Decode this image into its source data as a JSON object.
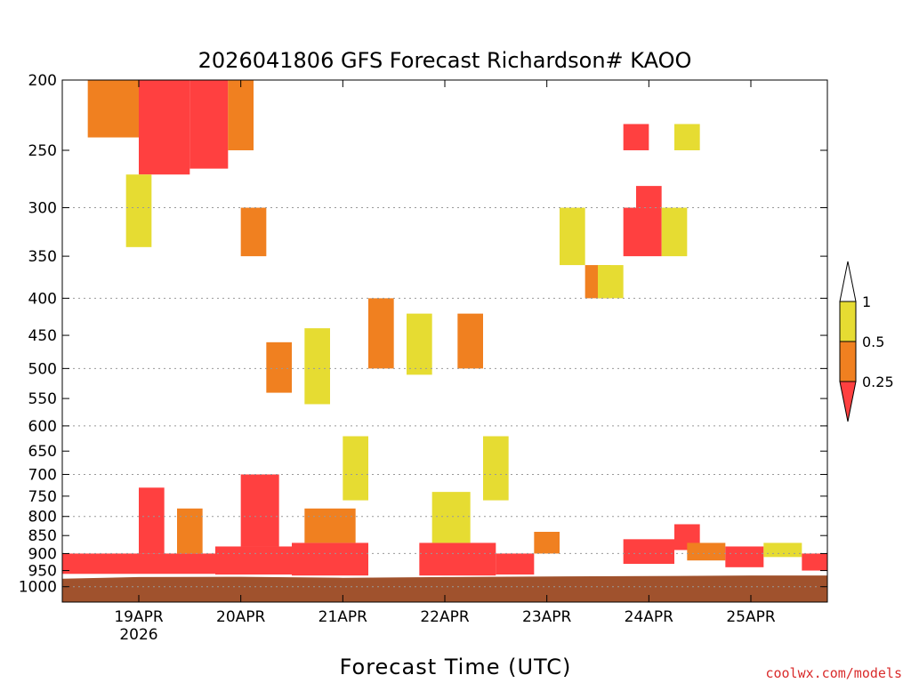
{
  "colors": {
    "ri_lt_025": "#ff4040",
    "ri_025_05": "#f08020",
    "ri_05_1": "#e6dc32",
    "terrain": "#a0522d",
    "grid": "#999999"
  },
  "credit": "coolwx.com/models",
  "chart_data": {
    "type": "heatmap",
    "title": "2026041806 GFS Forecast Richardson# KAOO",
    "xlabel": "Forecast Time (UTC)",
    "ylabel": "",
    "x_ticks": [
      "19APR",
      "20APR",
      "21APR",
      "22APR",
      "23APR",
      "24APR",
      "25APR"
    ],
    "x_tick_sublabel": "2026",
    "x_range": [
      "2026-04-18T06:00Z",
      "2026-04-25T18:00Z"
    ],
    "x_tick_dates": [
      "2026-04-19",
      "2026-04-20",
      "2026-04-21",
      "2026-04-22",
      "2026-04-23",
      "2026-04-24",
      "2026-04-25"
    ],
    "y_ticks": [
      200,
      250,
      300,
      350,
      400,
      450,
      500,
      550,
      600,
      650,
      700,
      750,
      800,
      850,
      900,
      950,
      1000
    ],
    "y_range": [
      200,
      1050
    ],
    "y_scale": "log-pressure",
    "y_inverted": true,
    "grid_levels": [
      300,
      400,
      500,
      600,
      700,
      800,
      900,
      1000
    ],
    "legend": {
      "labels": [
        "1",
        "0.5",
        "0.25"
      ],
      "bins": [
        {
          "range": [
            0.5,
            1
          ],
          "color": "#e6dc32"
        },
        {
          "range": [
            0.25,
            0.5
          ],
          "color": "#f08020"
        },
        {
          "range": [
            0,
            0.25
          ],
          "color": "#ff4040"
        }
      ],
      "placement": "right"
    },
    "surface": [
      {
        "date": "2026-04-18T06:00Z",
        "pressure": 975
      },
      {
        "date": "2026-04-19T00:00Z",
        "pressure": 970
      },
      {
        "date": "2026-04-20T00:00Z",
        "pressure": 969
      },
      {
        "date": "2026-04-21T00:00Z",
        "pressure": 972
      },
      {
        "date": "2026-04-22T00:00Z",
        "pressure": 970
      },
      {
        "date": "2026-04-23T00:00Z",
        "pressure": 968
      },
      {
        "date": "2026-04-24T00:00Z",
        "pressure": 967
      },
      {
        "date": "2026-04-25T00:00Z",
        "pressure": 965
      },
      {
        "date": "2026-04-25T18:00Z",
        "pressure": 965
      }
    ],
    "regions": [
      {
        "start": "2026-04-18T06:00Z",
        "end": "2026-04-19T18:00Z",
        "p_top": 900,
        "p_bottom": 960,
        "value": 0.15
      },
      {
        "start": "2026-04-19T18:00Z",
        "end": "2026-04-20T12:00Z",
        "p_top": 880,
        "p_bottom": 962,
        "value": 0.15
      },
      {
        "start": "2026-04-20T12:00Z",
        "end": "2026-04-21T06:00Z",
        "p_top": 870,
        "p_bottom": 965,
        "value": 0.15
      },
      {
        "start": "2026-04-21T18:00Z",
        "end": "2026-04-22T12:00Z",
        "p_top": 870,
        "p_bottom": 965,
        "value": 0.15
      },
      {
        "start": "2026-04-22T12:00Z",
        "end": "2026-04-22T21:00Z",
        "p_top": 900,
        "p_bottom": 962,
        "value": 0.15
      },
      {
        "start": "2026-04-19T00:00Z",
        "end": "2026-04-19T06:00Z",
        "p_top": 730,
        "p_bottom": 900,
        "value": 0.15
      },
      {
        "start": "2026-04-20T00:00Z",
        "end": "2026-04-20T09:00Z",
        "p_top": 700,
        "p_bottom": 880,
        "value": 0.15
      },
      {
        "start": "2026-04-19T09:00Z",
        "end": "2026-04-19T15:00Z",
        "p_top": 780,
        "p_bottom": 900,
        "value": 0.35
      },
      {
        "start": "2026-04-20T15:00Z",
        "end": "2026-04-21T03:00Z",
        "p_top": 780,
        "p_bottom": 870,
        "value": 0.35
      },
      {
        "start": "2026-04-21T21:00Z",
        "end": "2026-04-22T06:00Z",
        "p_top": 740,
        "p_bottom": 870,
        "value": 0.7
      },
      {
        "start": "2026-04-19T00:00Z",
        "end": "2026-04-19T12:00Z",
        "p_top": 200,
        "p_bottom": 270,
        "value": 0.15
      },
      {
        "start": "2026-04-19T12:00Z",
        "end": "2026-04-19T21:00Z",
        "p_top": 200,
        "p_bottom": 265,
        "value": 0.15
      },
      {
        "start": "2026-04-18T12:00Z",
        "end": "2026-04-19T00:00Z",
        "p_top": 200,
        "p_bottom": 240,
        "value": 0.35
      },
      {
        "start": "2026-04-19T21:00Z",
        "end": "2026-04-20T03:00Z",
        "p_top": 200,
        "p_bottom": 250,
        "value": 0.35
      },
      {
        "start": "2026-04-18T21:00Z",
        "end": "2026-04-19T03:00Z",
        "p_top": 270,
        "p_bottom": 340,
        "value": 0.7
      },
      {
        "start": "2026-04-20T00:00Z",
        "end": "2026-04-20T06:00Z",
        "p_top": 300,
        "p_bottom": 350,
        "value": 0.35
      },
      {
        "start": "2026-04-20T06:00Z",
        "end": "2026-04-20T12:00Z",
        "p_top": 460,
        "p_bottom": 540,
        "value": 0.35
      },
      {
        "start": "2026-04-20T15:00Z",
        "end": "2026-04-20T21:00Z",
        "p_top": 440,
        "p_bottom": 560,
        "value": 0.7
      },
      {
        "start": "2026-04-21T00:00Z",
        "end": "2026-04-21T06:00Z",
        "p_top": 620,
        "p_bottom": 760,
        "value": 0.7
      },
      {
        "start": "2026-04-21T06:00Z",
        "end": "2026-04-21T12:00Z",
        "p_top": 400,
        "p_bottom": 500,
        "value": 0.35
      },
      {
        "start": "2026-04-21T15:00Z",
        "end": "2026-04-21T21:00Z",
        "p_top": 420,
        "p_bottom": 510,
        "value": 0.7
      },
      {
        "start": "2026-04-22T03:00Z",
        "end": "2026-04-22T09:00Z",
        "p_top": 420,
        "p_bottom": 500,
        "value": 0.35
      },
      {
        "start": "2026-04-22T09:00Z",
        "end": "2026-04-22T15:00Z",
        "p_top": 620,
        "p_bottom": 760,
        "value": 0.7
      },
      {
        "start": "2026-04-22T21:00Z",
        "end": "2026-04-23T03:00Z",
        "p_top": 840,
        "p_bottom": 900,
        "value": 0.35
      },
      {
        "start": "2026-04-23T03:00Z",
        "end": "2026-04-23T09:00Z",
        "p_top": 300,
        "p_bottom": 360,
        "value": 0.7
      },
      {
        "start": "2026-04-23T09:00Z",
        "end": "2026-04-23T15:00Z",
        "p_top": 360,
        "p_bottom": 400,
        "value": 0.35
      },
      {
        "start": "2026-04-23T12:00Z",
        "end": "2026-04-23T18:00Z",
        "p_top": 360,
        "p_bottom": 400,
        "value": 0.7
      },
      {
        "start": "2026-04-23T18:00Z",
        "end": "2026-04-24T03:00Z",
        "p_top": 300,
        "p_bottom": 350,
        "value": 0.15
      },
      {
        "start": "2026-04-23T18:00Z",
        "end": "2026-04-24T00:00Z",
        "p_top": 230,
        "p_bottom": 250,
        "value": 0.15
      },
      {
        "start": "2026-04-24T03:00Z",
        "end": "2026-04-24T09:00Z",
        "p_top": 300,
        "p_bottom": 350,
        "value": 0.7
      },
      {
        "start": "2026-04-23T21:00Z",
        "end": "2026-04-24T03:00Z",
        "p_top": 280,
        "p_bottom": 300,
        "value": 0.15
      },
      {
        "start": "2026-04-24T06:00Z",
        "end": "2026-04-24T12:00Z",
        "p_top": 230,
        "p_bottom": 250,
        "value": 0.7
      },
      {
        "start": "2026-04-23T18:00Z",
        "end": "2026-04-24T06:00Z",
        "p_top": 860,
        "p_bottom": 930,
        "value": 0.15
      },
      {
        "start": "2026-04-24T06:00Z",
        "end": "2026-04-24T12:00Z",
        "p_top": 820,
        "p_bottom": 890,
        "value": 0.15
      },
      {
        "start": "2026-04-24T09:00Z",
        "end": "2026-04-24T18:00Z",
        "p_top": 870,
        "p_bottom": 920,
        "value": 0.35
      },
      {
        "start": "2026-04-24T18:00Z",
        "end": "2026-04-25T03:00Z",
        "p_top": 880,
        "p_bottom": 940,
        "value": 0.15
      },
      {
        "start": "2026-04-25T03:00Z",
        "end": "2026-04-25T12:00Z",
        "p_top": 870,
        "p_bottom": 910,
        "value": 0.7
      },
      {
        "start": "2026-04-25T12:00Z",
        "end": "2026-04-25T18:00Z",
        "p_top": 900,
        "p_bottom": 950,
        "value": 0.15
      }
    ]
  }
}
